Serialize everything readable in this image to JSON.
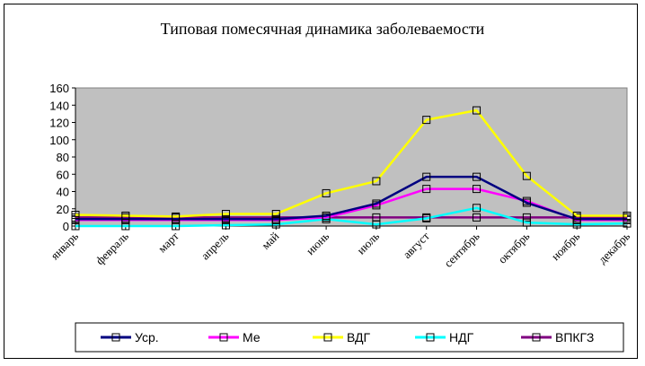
{
  "chart_data": {
    "type": "line",
    "title": "Типовая помесячная динамика заболеваемости",
    "xlabel": "",
    "ylabel": "",
    "ylim": [
      0,
      160
    ],
    "yticks": [
      0,
      20,
      40,
      60,
      80,
      100,
      120,
      140,
      160
    ],
    "grid": false,
    "legend_position": "bottom",
    "categories": [
      "январь",
      "февраль",
      "март",
      "апрель",
      "май",
      "июнь",
      "июль",
      "август",
      "сентябрь",
      "октябрь",
      "ноябрь",
      "декабрь"
    ],
    "series": [
      {
        "name": "Уср.",
        "color": "#000080",
        "values": [
          8,
          8,
          8,
          8,
          8,
          12,
          26,
          57,
          57,
          27,
          8,
          8
        ]
      },
      {
        "name": "Ме",
        "color": "#ff00ff",
        "values": [
          7,
          7,
          7,
          7,
          7,
          10,
          24,
          43,
          43,
          29,
          7,
          7
        ]
      },
      {
        "name": "ВДГ",
        "color": "#ffff00",
        "values": [
          13,
          12,
          11,
          14,
          14,
          38,
          52,
          123,
          134,
          58,
          12,
          12
        ]
      },
      {
        "name": "НДГ",
        "color": "#00ffff",
        "values": [
          0,
          0,
          0,
          1,
          2,
          8,
          2,
          9,
          21,
          4,
          2,
          3
        ]
      },
      {
        "name": "ВПКГЗ",
        "color": "#800080",
        "values": [
          10,
          10,
          10,
          10,
          10,
          10,
          10,
          10,
          10,
          10,
          10,
          10
        ]
      }
    ]
  }
}
